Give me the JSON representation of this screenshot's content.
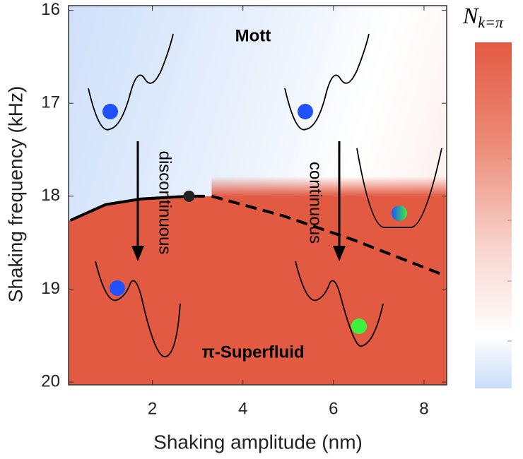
{
  "chart_data": {
    "type": "phase-diagram",
    "x_label": "Shaking amplitude (nm)",
    "y_label": "Shaking frequency (kHz)",
    "xlim": [
      0.15,
      8.5
    ],
    "ylim": [
      15.95,
      20.03
    ],
    "y_reversed": true,
    "xticks": [
      2,
      4,
      6,
      8
    ],
    "yticks": [
      16,
      17,
      18,
      19,
      20
    ],
    "lines": [
      {
        "style": "solid",
        "color": "#000000",
        "x": [
          0.19,
          0.97,
          1.75,
          2.81,
          3.16
        ],
        "y": [
          18.26,
          18.09,
          18.03,
          18.0,
          18.0
        ]
      },
      {
        "style": "dashed",
        "color": "#000000",
        "x": [
          3.31,
          4.88,
          6.44,
          8.39
        ],
        "y": [
          18.0,
          18.21,
          18.47,
          18.84
        ]
      }
    ],
    "points": [
      {
        "x": 2.81,
        "y": 18.0,
        "color": "#222222"
      }
    ],
    "annotations": [
      "Mott",
      "π-Superfluid",
      "discontinuous",
      "continuous"
    ],
    "colorbar": {
      "label": "N",
      "subscript": "k=π"
    }
  }
}
